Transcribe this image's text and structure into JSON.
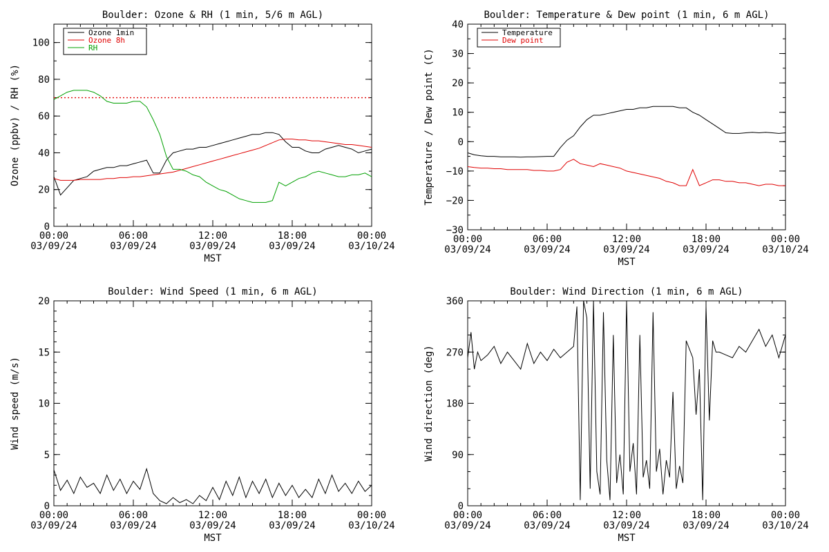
{
  "chart_data": [
    {
      "type": "line",
      "title": "Boulder: Ozone & RH (1 min, 5/6 m AGL)",
      "xlabel": "MST",
      "ylabel": "Ozone (ppbv) / RH (%)",
      "xlim": [
        "03/09/24 00:00",
        "03/10/24 00:00"
      ],
      "ylim": [
        0,
        110
      ],
      "x_ticks": [
        {
          "time": "00:00",
          "date": "03/09/24"
        },
        {
          "time": "06:00",
          "date": "03/09/24"
        },
        {
          "time": "12:00",
          "date": "03/09/24"
        },
        {
          "time": "18:00",
          "date": "03/09/24"
        },
        {
          "time": "00:00",
          "date": "03/10/24"
        }
      ],
      "y_ticks": [
        "0",
        "20",
        "40",
        "60",
        "80",
        "100"
      ],
      "legend_position": "top-left",
      "reference_line": {
        "y": 70,
        "color": "#e00000",
        "style": "dotted"
      },
      "x_hours": [
        0,
        0.5,
        1,
        1.5,
        2,
        2.5,
        3,
        3.5,
        4,
        4.5,
        5,
        5.5,
        6,
        6.5,
        7,
        7.5,
        8,
        8.5,
        9,
        9.5,
        10,
        10.5,
        11,
        11.5,
        12,
        12.5,
        13,
        13.5,
        14,
        14.5,
        15,
        15.5,
        16,
        16.5,
        17,
        17.5,
        18,
        18.5,
        19,
        19.5,
        20,
        20.5,
        21,
        21.5,
        22,
        22.5,
        23,
        23.5,
        24
      ],
      "series": [
        {
          "name": "Ozone 1min",
          "color": "#000000",
          "values": [
            27,
            17,
            21,
            25,
            26,
            27,
            30,
            31,
            32,
            32,
            33,
            33,
            34,
            35,
            36,
            29,
            29,
            36,
            40,
            41,
            42,
            42,
            43,
            43,
            44,
            45,
            46,
            47,
            48,
            49,
            50,
            50,
            51,
            51,
            50,
            46,
            43,
            43,
            41,
            40,
            40,
            42,
            43,
            44,
            43,
            42,
            40,
            41,
            42
          ]
        },
        {
          "name": "Ozone 8h",
          "color": "#e00000",
          "values": [
            26,
            25,
            25,
            25,
            25.5,
            25.5,
            25.5,
            25.5,
            26,
            26,
            26.5,
            26.5,
            27,
            27,
            27.5,
            28,
            28.5,
            29,
            29.5,
            30.5,
            31.5,
            32.5,
            33.5,
            34.5,
            35.5,
            36.5,
            37.5,
            38.5,
            39.5,
            40.5,
            41.5,
            42.5,
            44,
            45.5,
            47,
            47.5,
            47.5,
            47,
            47,
            46.5,
            46.5,
            46,
            45.5,
            45,
            44.5,
            44.5,
            44,
            43.5,
            43
          ]
        },
        {
          "name": "RH",
          "color": "#00a000",
          "values": [
            69,
            71,
            73,
            74,
            74,
            74,
            73,
            71,
            68,
            67,
            67,
            67,
            68,
            68,
            65,
            58,
            50,
            38,
            31,
            31,
            30,
            28,
            27,
            24,
            22,
            20,
            19,
            17,
            15,
            14,
            13,
            13,
            13,
            14,
            24,
            22,
            24,
            26,
            27,
            29,
            30,
            29,
            28,
            27,
            27,
            28,
            28,
            29,
            27
          ]
        }
      ]
    },
    {
      "type": "line",
      "title": "Boulder: Temperature & Dew point (1 min, 6 m AGL)",
      "xlabel": "MST",
      "ylabel": "Temperature / Dew point (C)",
      "xlim": [
        "03/09/24 00:00",
        "03/10/24 00:00"
      ],
      "ylim": [
        -30,
        40
      ],
      "x_ticks": [
        {
          "time": "00:00",
          "date": "03/09/24"
        },
        {
          "time": "06:00",
          "date": "03/09/24"
        },
        {
          "time": "12:00",
          "date": "03/09/24"
        },
        {
          "time": "18:00",
          "date": "03/09/24"
        },
        {
          "time": "00:00",
          "date": "03/10/24"
        }
      ],
      "y_ticks": [
        "−30",
        "−20",
        "−10",
        "0",
        "10",
        "20",
        "30",
        "40"
      ],
      "legend_position": "top-left",
      "x_hours": [
        0,
        0.5,
        1,
        1.5,
        2,
        2.5,
        3,
        3.5,
        4,
        4.5,
        5,
        5.5,
        6,
        6.5,
        7,
        7.5,
        8,
        8.5,
        9,
        9.5,
        10,
        10.5,
        11,
        11.5,
        12,
        12.5,
        13,
        13.5,
        14,
        14.5,
        15,
        15.5,
        16,
        16.5,
        17,
        17.5,
        18,
        18.5,
        19,
        19.5,
        20,
        20.5,
        21,
        21.5,
        22,
        22.5,
        23,
        23.5,
        24
      ],
      "series": [
        {
          "name": "Temperature",
          "color": "#000000",
          "values": [
            -3.8,
            -4.5,
            -4.8,
            -5,
            -5,
            -5.2,
            -5.2,
            -5.2,
            -5.3,
            -5.2,
            -5.2,
            -5.1,
            -5,
            -5,
            -2,
            0.5,
            2,
            5,
            7.5,
            9,
            9,
            9.5,
            10,
            10.5,
            11,
            11,
            11.5,
            11.5,
            12,
            12,
            12,
            12,
            11.5,
            11.5,
            10,
            9,
            7.5,
            6,
            4.5,
            3,
            2.8,
            2.8,
            3,
            3.2,
            3,
            3.2,
            3,
            2.8,
            3
          ]
        },
        {
          "name": "Dew point",
          "color": "#e00000",
          "values": [
            -8.5,
            -8.8,
            -9,
            -9,
            -9.2,
            -9.2,
            -9.5,
            -9.5,
            -9.5,
            -9.5,
            -9.8,
            -9.8,
            -10,
            -10,
            -9.5,
            -7,
            -6,
            -7.5,
            -8,
            -8.5,
            -7.5,
            -8,
            -8.5,
            -9,
            -10,
            -10.5,
            -11,
            -11.5,
            -12,
            -12.5,
            -13.5,
            -14,
            -15,
            -15,
            -9.5,
            -15,
            -14,
            -13,
            -13,
            -13.5,
            -13.5,
            -14,
            -14,
            -14.5,
            -15,
            -14.5,
            -14.5,
            -15,
            -15
          ]
        }
      ]
    },
    {
      "type": "line",
      "title": "Boulder: Wind Speed (1 min, 6 m AGL)",
      "xlabel": "MST",
      "ylabel": "Wind speed (m/s)",
      "xlim": [
        "03/09/24 00:00",
        "03/10/24 00:00"
      ],
      "ylim": [
        0,
        20
      ],
      "x_ticks": [
        {
          "time": "00:00",
          "date": "03/09/24"
        },
        {
          "time": "06:00",
          "date": "03/09/24"
        },
        {
          "time": "12:00",
          "date": "03/09/24"
        },
        {
          "time": "18:00",
          "date": "03/09/24"
        },
        {
          "time": "00:00",
          "date": "03/10/24"
        }
      ],
      "y_ticks": [
        "0",
        "5",
        "10",
        "15",
        "20"
      ],
      "x_hours": [
        0,
        0.5,
        1,
        1.5,
        2,
        2.5,
        3,
        3.5,
        4,
        4.5,
        5,
        5.5,
        6,
        6.5,
        7,
        7.5,
        8,
        8.5,
        9,
        9.5,
        10,
        10.5,
        11,
        11.5,
        12,
        12.5,
        13,
        13.5,
        14,
        14.5,
        15,
        15.5,
        16,
        16.5,
        17,
        17.5,
        18,
        18.5,
        19,
        19.5,
        20,
        20.5,
        21,
        21.5,
        22,
        22.5,
        23,
        23.5,
        24
      ],
      "series": [
        {
          "name": "",
          "color": "#000000",
          "values": [
            3.5,
            1.5,
            2.5,
            1.2,
            2.8,
            1.8,
            2.2,
            1.2,
            3,
            1.5,
            2.6,
            1.2,
            2.4,
            1.6,
            3.6,
            1.2,
            0.5,
            0.2,
            0.8,
            0.3,
            0.6,
            0.2,
            1,
            0.5,
            1.8,
            0.6,
            2.4,
            1,
            2.8,
            0.8,
            2.4,
            1.2,
            2.6,
            0.8,
            2.2,
            1,
            2,
            0.8,
            1.6,
            0.8,
            2.6,
            1.2,
            3,
            1.4,
            2.2,
            1.2,
            2.4,
            1.4,
            2
          ]
        }
      ]
    },
    {
      "type": "line",
      "title": "Boulder: Wind Direction (1 min, 6 m AGL)",
      "xlabel": "MST",
      "ylabel": "Wind direction (deg)",
      "xlim": [
        "03/09/24 00:00",
        "03/10/24 00:00"
      ],
      "ylim": [
        0,
        360
      ],
      "x_ticks": [
        {
          "time": "00:00",
          "date": "03/09/24"
        },
        {
          "time": "06:00",
          "date": "03/09/24"
        },
        {
          "time": "12:00",
          "date": "03/09/24"
        },
        {
          "time": "18:00",
          "date": "03/09/24"
        },
        {
          "time": "00:00",
          "date": "03/10/24"
        }
      ],
      "y_ticks": [
        "0",
        "90",
        "180",
        "270",
        "360"
      ],
      "x_hours": [
        0,
        0.25,
        0.5,
        0.75,
        1,
        1.5,
        2,
        2.5,
        3,
        3.5,
        4,
        4.5,
        5,
        5.5,
        6,
        6.5,
        7,
        7.5,
        8,
        8.25,
        8.5,
        8.75,
        9,
        9.25,
        9.5,
        9.75,
        10,
        10.25,
        10.5,
        10.75,
        11,
        11.25,
        11.5,
        11.75,
        12,
        12.25,
        12.5,
        12.75,
        13,
        13.25,
        13.5,
        13.75,
        14,
        14.25,
        14.5,
        14.75,
        15,
        15.25,
        15.5,
        15.75,
        16,
        16.25,
        16.5,
        17,
        17.25,
        17.5,
        17.75,
        18,
        18.25,
        18.5,
        18.75,
        19,
        19.5,
        20,
        20.5,
        21,
        21.5,
        22,
        22.5,
        23,
        23.5,
        24
      ],
      "series": [
        {
          "name": "",
          "color": "#000000",
          "values": [
            260,
            305,
            240,
            270,
            255,
            265,
            280,
            250,
            270,
            255,
            240,
            285,
            250,
            270,
            255,
            275,
            260,
            270,
            280,
            350,
            10,
            360,
            330,
            30,
            360,
            60,
            20,
            340,
            80,
            10,
            300,
            40,
            90,
            20,
            360,
            60,
            110,
            20,
            300,
            50,
            80,
            30,
            340,
            60,
            100,
            20,
            80,
            50,
            200,
            30,
            70,
            40,
            290,
            260,
            160,
            240,
            10,
            350,
            150,
            290,
            270,
            270,
            265,
            260,
            280,
            270,
            290,
            310,
            280,
            300,
            260,
            300
          ]
        }
      ]
    }
  ]
}
